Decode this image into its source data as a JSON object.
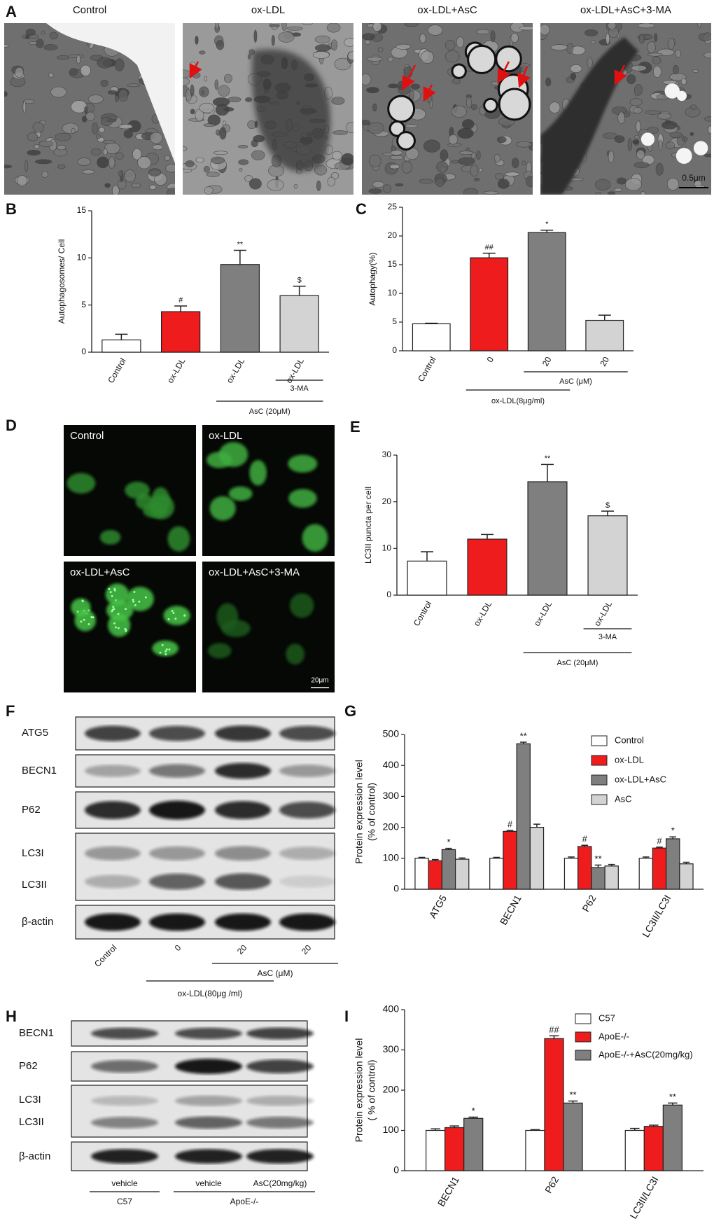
{
  "panel_letters": [
    "A",
    "B",
    "C",
    "D",
    "E",
    "F",
    "G",
    "H",
    "I"
  ],
  "micrographs": {
    "labels": [
      "Control",
      "ox-LDL",
      "ox-LDL+AsC",
      "ox-LDL+AsC+3-MA"
    ],
    "scale": "0.5μm"
  },
  "fluorescence": {
    "labels": [
      "Control",
      "ox-LDL",
      "ox-LDL+AsC",
      "ox-LDL+AsC+3-MA"
    ],
    "scale": "20μm"
  },
  "blot_f": {
    "rows": [
      "ATG5",
      "BECN1",
      "P62",
      "LC3I",
      "LC3II",
      "β-actin"
    ],
    "lanes": [
      "Control",
      "0",
      "20",
      "20"
    ],
    "groups": [
      {
        "label": "AsC (μM)",
        "from": 2,
        "to": 3
      },
      {
        "label": "ox-LDL(80μg /ml)",
        "from": 1,
        "to": 2
      }
    ]
  },
  "blot_h": {
    "rows": [
      "BECN1",
      "P62",
      "LC3I",
      "LC3II",
      "β-actin"
    ],
    "lanes": [
      "vehicle",
      "vehicle",
      "AsC(20mg/kg)"
    ],
    "groups": [
      {
        "label": "C57",
        "from": 0,
        "to": 0
      },
      {
        "label": "ApoE-/-",
        "from": 1,
        "to": 2
      }
    ]
  },
  "chart_data": [
    {
      "type": "bar",
      "ylabel": [
        "Autophagosomes/ Cell"
      ],
      "categories": [
        "Control",
        "ox-LDL",
        "ox-LDL",
        "ox-LDL"
      ],
      "values": [
        1.3,
        4.3,
        9.3,
        6.0
      ],
      "errors": [
        0.6,
        0.6,
        1.5,
        1.0
      ],
      "colors": [
        "#ffffff",
        "#ee1c1c",
        "#7f7f7f",
        "#d3d3d3"
      ],
      "markers": [
        null,
        "#",
        "**",
        "$"
      ],
      "groups": [
        {
          "label": "3-MA",
          "from": 3,
          "to": 3
        },
        {
          "label": "AsC (20μM)",
          "from": 2,
          "to": 3
        }
      ],
      "ylim": [
        0,
        15
      ],
      "yticks": [
        0,
        5,
        10,
        15
      ]
    },
    {
      "type": "bar",
      "ylabel": [
        "Autophagy(%)"
      ],
      "categories": [
        "Control",
        "0",
        "20",
        "20"
      ],
      "values": [
        4.7,
        16.2,
        20.6,
        5.3
      ],
      "errors": [
        0.1,
        0.8,
        0.4,
        0.9
      ],
      "colors": [
        "#ffffff",
        "#ee1c1c",
        "#7f7f7f",
        "#d3d3d3"
      ],
      "markers": [
        null,
        "##",
        "*",
        null
      ],
      "groups": [
        {
          "label": "AsC (μM)",
          "from": 2,
          "to": 3
        },
        {
          "label": "ox-LDL(8μg/ml)",
          "from": 1,
          "to": 2
        }
      ],
      "ylim": [
        0,
        25
      ],
      "yticks": [
        0,
        5,
        10,
        15,
        20,
        25
      ]
    },
    {
      "type": "bar",
      "ylabel": [
        "LC3II puncta per cell"
      ],
      "categories": [
        "Control",
        "ox-LDL",
        "ox-LDL",
        "ox-LDL"
      ],
      "values": [
        7.3,
        12.0,
        24.3,
        17.0
      ],
      "errors": [
        2.0,
        1.0,
        3.7,
        1.0
      ],
      "colors": [
        "#ffffff",
        "#ee1c1c",
        "#7f7f7f",
        "#d3d3d3"
      ],
      "markers": [
        null,
        null,
        "**",
        "$"
      ],
      "groups": [
        {
          "label": "3-MA",
          "from": 3,
          "to": 3
        },
        {
          "label": "AsC (20μM)",
          "from": 2,
          "to": 3
        }
      ],
      "ylim": [
        0,
        30
      ],
      "yticks": [
        0,
        10,
        20,
        30
      ]
    },
    {
      "type": "bar",
      "ylabel": [
        "Protein expression level",
        "(% of control)"
      ],
      "categories": [
        "ATG5",
        "BECN1",
        "P62",
        "LC3II/LC3I"
      ],
      "series": [
        {
          "name": "Control",
          "color": "#ffffff",
          "values": [
            100,
            100,
            100,
            100
          ],
          "errors": [
            3,
            3,
            4,
            4
          ],
          "markers": [
            null,
            null,
            null,
            null
          ]
        },
        {
          "name": "ox-LDL",
          "color": "#ee1c1c",
          "values": [
            92,
            187,
            138,
            133
          ],
          "errors": [
            4,
            3,
            4,
            3
          ],
          "markers": [
            null,
            "#",
            "#",
            "#"
          ]
        },
        {
          "name": "ox-LDL+AsC",
          "color": "#7f7f7f",
          "values": [
            128,
            470,
            70,
            163
          ],
          "errors": [
            4,
            5,
            8,
            6
          ],
          "markers": [
            "*",
            "**",
            "**",
            "*"
          ]
        },
        {
          "name": "AsC",
          "color": "#d3d3d3",
          "values": [
            97,
            200,
            75,
            82
          ],
          "errors": [
            4,
            10,
            5,
            5
          ],
          "markers": [
            null,
            null,
            null,
            null
          ]
        }
      ],
      "legend": "upper right",
      "ylim": [
        0,
        500
      ],
      "yticks": [
        0,
        100,
        200,
        300,
        400,
        500
      ]
    },
    {
      "type": "bar",
      "ylabel": [
        "Protein expression level",
        "( % of control)"
      ],
      "categories": [
        "BECN1",
        "P62",
        "LC3II/LC3I"
      ],
      "series": [
        {
          "name": "C57",
          "color": "#ffffff",
          "values": [
            100,
            100,
            100
          ],
          "errors": [
            4,
            2,
            5
          ],
          "markers": [
            null,
            null,
            null
          ]
        },
        {
          "name": "ApoE-/-",
          "color": "#ee1c1c",
          "values": [
            107,
            328,
            110
          ],
          "errors": [
            4,
            7,
            3
          ],
          "markers": [
            null,
            "##",
            null
          ]
        },
        {
          "name": "ApoE-/-+AsC(20mg/kg)",
          "color": "#7f7f7f",
          "values": [
            130,
            168,
            163
          ],
          "errors": [
            3,
            5,
            5
          ],
          "markers": [
            "*",
            "**",
            "**"
          ]
        }
      ],
      "legend": "upper right",
      "ylim": [
        0,
        400
      ],
      "yticks": [
        0,
        100,
        200,
        300,
        400
      ]
    }
  ]
}
